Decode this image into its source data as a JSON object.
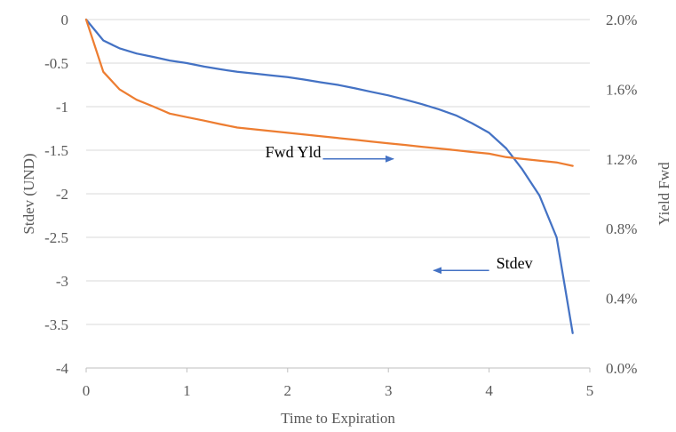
{
  "chart_data": {
    "type": "line",
    "title": "",
    "xlabel": "Time to Expiration",
    "ylabel_left": "Stdev (UND)",
    "ylabel_right": "Yield Fwd",
    "xlim": [
      0,
      5
    ],
    "ylim_left": [
      -4,
      0
    ],
    "ylim_right": [
      0.0,
      2.0
    ],
    "x_ticks": [
      "0",
      "1",
      "2",
      "3",
      "4",
      "5"
    ],
    "y_ticks_left": [
      "0",
      "-0.5",
      "-1",
      "-1.5",
      "-2",
      "-2.5",
      "-3",
      "-3.5",
      "-4"
    ],
    "y_ticks_right": [
      "2.0%",
      "1.6%",
      "1.2%",
      "0.8%",
      "0.4%",
      "0.0%"
    ],
    "grid": true,
    "legend": "none",
    "series": [
      {
        "axis": "left",
        "color": "#4472c4",
        "x": [
          0,
          0.17,
          0.33,
          0.5,
          0.67,
          0.83,
          1.0,
          1.17,
          1.33,
          1.5,
          1.67,
          1.83,
          2.0,
          2.17,
          2.33,
          2.5,
          2.67,
          2.83,
          3.0,
          3.17,
          3.33,
          3.5,
          3.67,
          3.83,
          4.0,
          4.17,
          4.33,
          4.5,
          4.67,
          4.83
        ],
        "values": [
          0,
          -0.24,
          -0.33,
          -0.39,
          -0.43,
          -0.47,
          -0.5,
          -0.54,
          -0.57,
          -0.6,
          -0.62,
          -0.64,
          -0.66,
          -0.69,
          -0.72,
          -0.75,
          -0.79,
          -0.83,
          -0.87,
          -0.92,
          -0.97,
          -1.03,
          -1.1,
          -1.19,
          -1.3,
          -1.48,
          -1.72,
          -2.02,
          -2.5,
          -3.6
        ]
      },
      {
        "axis": "right",
        "color": "#ed7d31",
        "x": [
          0,
          0.17,
          0.33,
          0.5,
          0.67,
          0.83,
          1.0,
          1.17,
          1.33,
          1.5,
          1.67,
          1.83,
          2.0,
          2.17,
          2.33,
          2.5,
          2.67,
          2.83,
          3.0,
          3.17,
          3.33,
          3.5,
          3.67,
          3.83,
          4.0,
          4.17,
          4.33,
          4.5,
          4.67,
          4.83
        ],
        "values": [
          2.0,
          1.7,
          1.6,
          1.54,
          1.5,
          1.46,
          1.44,
          1.42,
          1.4,
          1.38,
          1.37,
          1.36,
          1.35,
          1.34,
          1.33,
          1.32,
          1.31,
          1.3,
          1.29,
          1.28,
          1.27,
          1.26,
          1.25,
          1.24,
          1.23,
          1.21,
          1.2,
          1.19,
          1.18,
          1.16
        ]
      }
    ],
    "annotations": [
      {
        "text": "Fwd Yld",
        "target_series": 1,
        "arrow_from_x": 2.35,
        "arrow_from_y_right": 1.2,
        "arrow_to_x": 3.05,
        "arrow_to_y_right": 1.2
      },
      {
        "text": "Stdev",
        "target_series": 0,
        "arrow_from_x": 4.0,
        "arrow_from_y_right": 0.56,
        "arrow_to_x": 3.45,
        "arrow_to_y_right": 0.56
      }
    ]
  }
}
